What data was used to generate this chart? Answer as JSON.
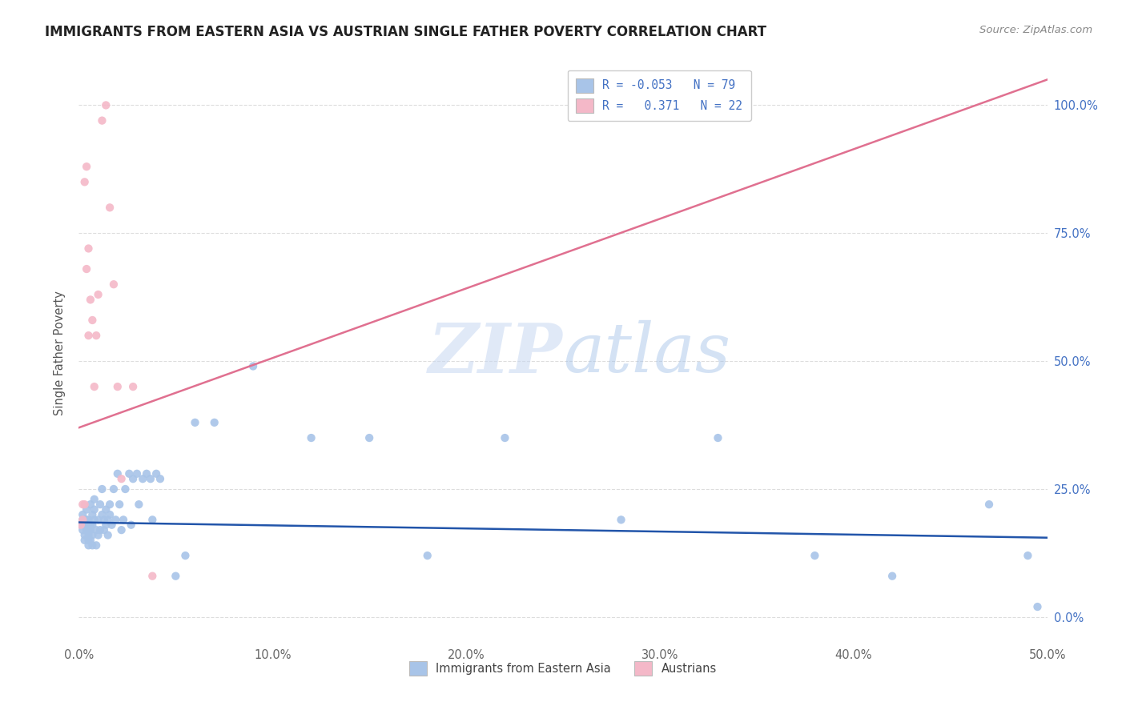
{
  "title": "IMMIGRANTS FROM EASTERN ASIA VS AUSTRIAN SINGLE FATHER POVERTY CORRELATION CHART",
  "source": "Source: ZipAtlas.com",
  "ylabel": "Single Father Poverty",
  "xlim": [
    0.0,
    0.5
  ],
  "ylim": [
    -0.05,
    1.08
  ],
  "legend_labels": [
    "Immigrants from Eastern Asia",
    "Austrians"
  ],
  "blue_R": "-0.053",
  "blue_N": "79",
  "pink_R": "0.371",
  "pink_N": "22",
  "blue_color": "#a8c4e8",
  "pink_color": "#f4b8c8",
  "blue_line_color": "#2255aa",
  "pink_line_color": "#e07090",
  "background_color": "#ffffff",
  "watermark_zip": "ZIP",
  "watermark_atlas": "atlas",
  "grid_color": "#dddddd",
  "title_fontsize": 12,
  "right_tick_color": "#4472c4",
  "blue_points_x": [
    0.001,
    0.002,
    0.002,
    0.002,
    0.003,
    0.003,
    0.003,
    0.003,
    0.004,
    0.004,
    0.004,
    0.004,
    0.005,
    0.005,
    0.005,
    0.005,
    0.005,
    0.006,
    0.006,
    0.006,
    0.006,
    0.007,
    0.007,
    0.007,
    0.007,
    0.008,
    0.008,
    0.008,
    0.009,
    0.009,
    0.01,
    0.01,
    0.011,
    0.011,
    0.012,
    0.012,
    0.013,
    0.013,
    0.014,
    0.014,
    0.015,
    0.015,
    0.016,
    0.016,
    0.017,
    0.018,
    0.019,
    0.02,
    0.021,
    0.022,
    0.023,
    0.024,
    0.026,
    0.027,
    0.028,
    0.03,
    0.031,
    0.033,
    0.035,
    0.037,
    0.038,
    0.04,
    0.042,
    0.05,
    0.055,
    0.06,
    0.07,
    0.09,
    0.12,
    0.15,
    0.18,
    0.22,
    0.28,
    0.33,
    0.38,
    0.42,
    0.47,
    0.49,
    0.495
  ],
  "blue_points_y": [
    0.18,
    0.19,
    0.17,
    0.2,
    0.15,
    0.18,
    0.16,
    0.19,
    0.17,
    0.19,
    0.21,
    0.18,
    0.15,
    0.17,
    0.19,
    0.16,
    0.14,
    0.22,
    0.18,
    0.15,
    0.17,
    0.16,
    0.14,
    0.18,
    0.2,
    0.21,
    0.23,
    0.19,
    0.17,
    0.14,
    0.19,
    0.16,
    0.22,
    0.17,
    0.2,
    0.25,
    0.19,
    0.17,
    0.21,
    0.18,
    0.19,
    0.16,
    0.22,
    0.2,
    0.18,
    0.25,
    0.19,
    0.28,
    0.22,
    0.17,
    0.19,
    0.25,
    0.28,
    0.18,
    0.27,
    0.28,
    0.22,
    0.27,
    0.28,
    0.27,
    0.19,
    0.28,
    0.27,
    0.08,
    0.12,
    0.38,
    0.38,
    0.49,
    0.35,
    0.35,
    0.12,
    0.35,
    0.19,
    0.35,
    0.12,
    0.08,
    0.22,
    0.12,
    0.02
  ],
  "pink_points_x": [
    0.001,
    0.002,
    0.002,
    0.003,
    0.003,
    0.004,
    0.004,
    0.005,
    0.005,
    0.006,
    0.007,
    0.008,
    0.009,
    0.01,
    0.012,
    0.014,
    0.016,
    0.018,
    0.02,
    0.022,
    0.028,
    0.038
  ],
  "pink_points_y": [
    0.18,
    0.22,
    0.19,
    0.22,
    0.85,
    0.88,
    0.68,
    0.72,
    0.55,
    0.62,
    0.58,
    0.45,
    0.55,
    0.63,
    0.97,
    1.0,
    0.8,
    0.65,
    0.45,
    0.27,
    0.45,
    0.08
  ],
  "pink_line_x0": 0.0,
  "pink_line_y0": 0.37,
  "pink_line_x1": 0.5,
  "pink_line_y1": 1.05,
  "blue_line_x0": 0.0,
  "blue_line_y0": 0.185,
  "blue_line_x1": 0.5,
  "blue_line_y1": 0.155
}
